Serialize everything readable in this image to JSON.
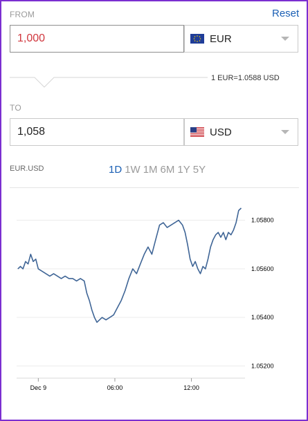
{
  "from": {
    "label": "FROM",
    "reset_label": "Reset",
    "amount": "1,000",
    "currency": "EUR",
    "flag": "eu-flag-icon"
  },
  "rate_text": "1 EUR=1.0588 USD",
  "to": {
    "label": "TO",
    "amount": "1,058",
    "currency": "USD",
    "flag": "us-flag-icon"
  },
  "chart_header": {
    "pair": "EUR.USD",
    "timeframes": [
      "1D",
      "1W",
      "1M",
      "6M",
      "1Y",
      "5Y"
    ],
    "active_timeframe": "1D"
  },
  "colors": {
    "accent": "#1a5fb4",
    "from_amount": "#d0363d",
    "line": "#3f6596"
  },
  "chart_data": {
    "type": "line",
    "title": "",
    "xlabel": "",
    "ylabel": "",
    "x_tick_labels": [
      "Dec 9",
      "06:00",
      "12:00"
    ],
    "x_tick_hours": [
      0,
      6,
      12
    ],
    "xlim_hours": [
      -1.7,
      16.2
    ],
    "y_tick_labels": [
      "1.05800",
      "1.05600",
      "1.05400",
      "1.05200"
    ],
    "y_ticks": [
      1.058,
      1.056,
      1.054,
      1.052
    ],
    "ylim": [
      1.0515,
      1.0587
    ],
    "grid": true,
    "y_axis_position": "right",
    "series": [
      {
        "x": [
          -1.6,
          -1.4,
          -1.2,
          -1.0,
          -0.8,
          -0.6,
          -0.4,
          -0.2,
          0.0,
          0.3,
          0.6,
          0.9,
          1.2,
          1.5,
          1.8,
          2.1,
          2.4,
          2.7,
          3.0,
          3.3,
          3.6,
          3.8,
          4.0,
          4.2,
          4.4,
          4.6,
          4.8,
          5.0,
          5.3,
          5.6,
          5.9,
          6.2,
          6.5,
          6.8,
          7.1,
          7.4,
          7.7,
          8.0,
          8.3,
          8.6,
          8.9,
          9.2,
          9.5,
          9.8,
          10.1,
          10.4,
          10.7,
          11.0,
          11.3,
          11.5,
          11.7,
          11.9,
          12.1,
          12.3,
          12.5,
          12.7,
          12.9,
          13.1,
          13.3,
          13.5,
          13.7,
          13.9,
          14.1,
          14.3,
          14.5,
          14.7,
          14.9,
          15.1,
          15.3,
          15.5,
          15.7,
          15.9
        ],
        "y": [
          1.056,
          1.0561,
          1.056,
          1.0563,
          1.0562,
          1.0566,
          1.0563,
          1.0564,
          1.056,
          1.0559,
          1.0558,
          1.0557,
          1.0558,
          1.0557,
          1.0556,
          1.0557,
          1.0556,
          1.0556,
          1.0555,
          1.0556,
          1.0555,
          1.055,
          1.0547,
          1.0543,
          1.054,
          1.0538,
          1.0539,
          1.054,
          1.0539,
          1.054,
          1.0541,
          1.0544,
          1.0547,
          1.0551,
          1.0556,
          1.056,
          1.0558,
          1.0562,
          1.0566,
          1.0569,
          1.0566,
          1.0572,
          1.0578,
          1.0579,
          1.0577,
          1.0578,
          1.0579,
          1.058,
          1.0578,
          1.0575,
          1.057,
          1.0564,
          1.0561,
          1.0563,
          1.056,
          1.0558,
          1.0561,
          1.056,
          1.0564,
          1.0569,
          1.0572,
          1.0574,
          1.0575,
          1.0573,
          1.0575,
          1.0572,
          1.0575,
          1.0574,
          1.0576,
          1.0579,
          1.0584,
          1.0585
        ]
      }
    ]
  }
}
